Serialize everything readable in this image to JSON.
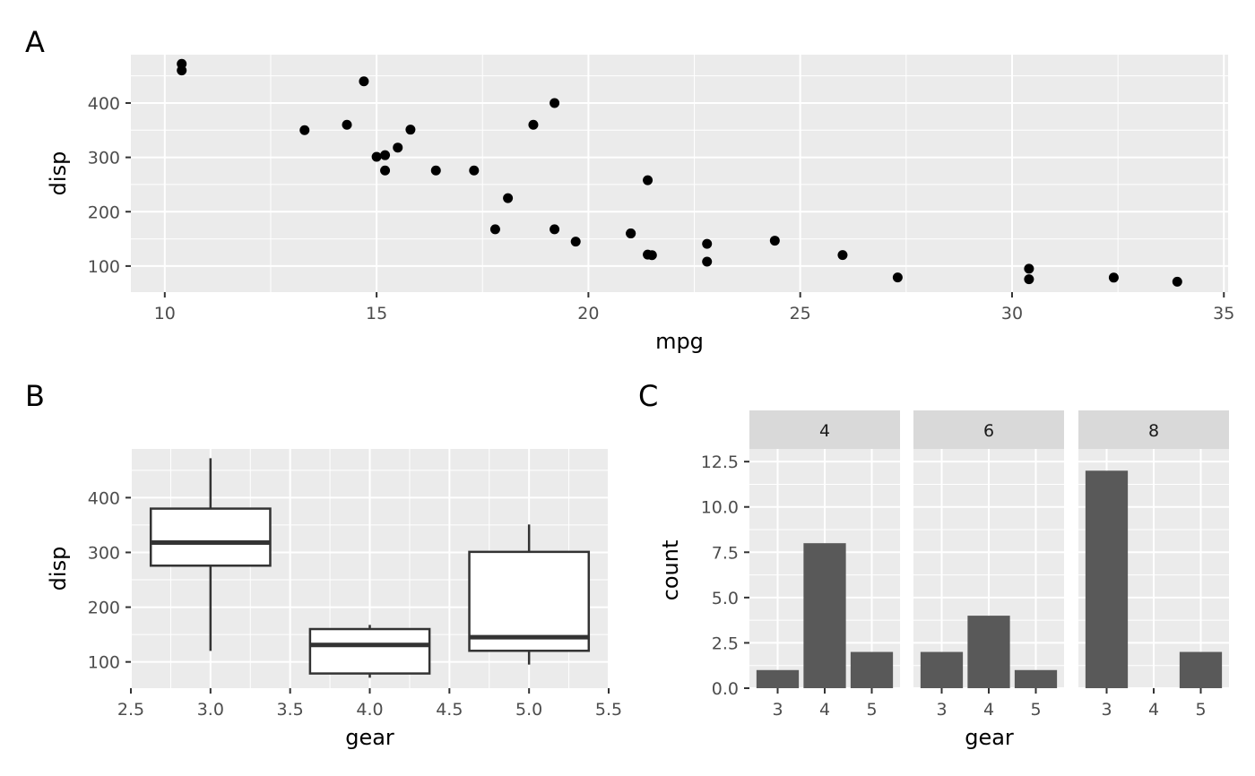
{
  "tags": {
    "a": "A",
    "b": "B",
    "c": "C"
  },
  "chart_data": [
    {
      "type": "scatter",
      "panel": "A",
      "xlabel": "mpg",
      "ylabel": "disp",
      "xlim": [
        9.2,
        35.1
      ],
      "ylim": [
        52,
        489
      ],
      "x_ticks": [
        10,
        15,
        20,
        25,
        30,
        35
      ],
      "x_tick_labels": [
        "10",
        "15",
        "20",
        "25",
        "30",
        "35"
      ],
      "y_ticks": [
        100,
        200,
        300,
        400
      ],
      "y_tick_labels": [
        "100",
        "200",
        "300",
        "400"
      ],
      "point_color": "#000000",
      "points": [
        [
          21.0,
          160
        ],
        [
          21.0,
          160
        ],
        [
          22.8,
          108
        ],
        [
          21.4,
          258
        ],
        [
          18.7,
          360
        ],
        [
          18.1,
          225
        ],
        [
          14.3,
          360
        ],
        [
          24.4,
          146.7
        ],
        [
          22.8,
          140.8
        ],
        [
          19.2,
          167.6
        ],
        [
          17.8,
          167.6
        ],
        [
          16.4,
          275.8
        ],
        [
          17.3,
          275.8
        ],
        [
          15.2,
          275.8
        ],
        [
          10.4,
          472
        ],
        [
          10.4,
          460
        ],
        [
          14.7,
          440
        ],
        [
          32.4,
          78.7
        ],
        [
          30.4,
          75.7
        ],
        [
          33.9,
          71.1
        ],
        [
          21.5,
          120.1
        ],
        [
          15.5,
          318
        ],
        [
          15.2,
          304
        ],
        [
          13.3,
          350
        ],
        [
          19.2,
          400
        ],
        [
          27.3,
          79
        ],
        [
          26.0,
          120.3
        ],
        [
          30.4,
          95.1
        ],
        [
          15.8,
          351
        ],
        [
          19.7,
          145
        ],
        [
          15.0,
          301
        ],
        [
          21.4,
          121
        ]
      ]
    },
    {
      "type": "box",
      "panel": "B",
      "xlabel": "gear",
      "ylabel": "disp",
      "xlim": [
        2.5,
        5.5
      ],
      "ylim": [
        52,
        489
      ],
      "x_ticks": [
        2.5,
        3.0,
        3.5,
        4.0,
        4.5,
        5.0,
        5.5
      ],
      "x_tick_labels": [
        "2.5",
        "3.0",
        "3.5",
        "4.0",
        "4.5",
        "5.0",
        "5.5"
      ],
      "y_ticks": [
        100,
        200,
        300,
        400
      ],
      "y_tick_labels": [
        "100",
        "200",
        "300",
        "400"
      ],
      "fill": "#ffffff",
      "stroke": "#333333",
      "boxes": [
        {
          "gear": 3,
          "lower_whisker": 120.1,
          "q1": 275.8,
          "median": 318,
          "q3": 380,
          "upper_whisker": 472
        },
        {
          "gear": 4,
          "lower_whisker": 71.1,
          "q1": 78.85,
          "median": 130.9,
          "q3": 160,
          "upper_whisker": 167.6
        },
        {
          "gear": 5,
          "lower_whisker": 95.1,
          "q1": 120.3,
          "median": 145,
          "q3": 301,
          "upper_whisker": 351
        }
      ]
    },
    {
      "type": "bar",
      "panel": "C",
      "xlabel": "gear",
      "ylabel": "count",
      "ylim": [
        0,
        13.2
      ],
      "y_ticks": [
        0,
        2.5,
        5,
        7.5,
        10,
        12.5
      ],
      "y_tick_labels": [
        "0.0",
        "2.5",
        "5.0",
        "7.5",
        "10.0",
        "12.5"
      ],
      "categories": [
        "3",
        "4",
        "5"
      ],
      "bar_color": "#595959",
      "facets": [
        {
          "label": "4",
          "values": [
            1,
            8,
            2
          ]
        },
        {
          "label": "6",
          "values": [
            2,
            4,
            1
          ]
        },
        {
          "label": "8",
          "values": [
            12,
            0,
            2
          ]
        }
      ]
    }
  ]
}
